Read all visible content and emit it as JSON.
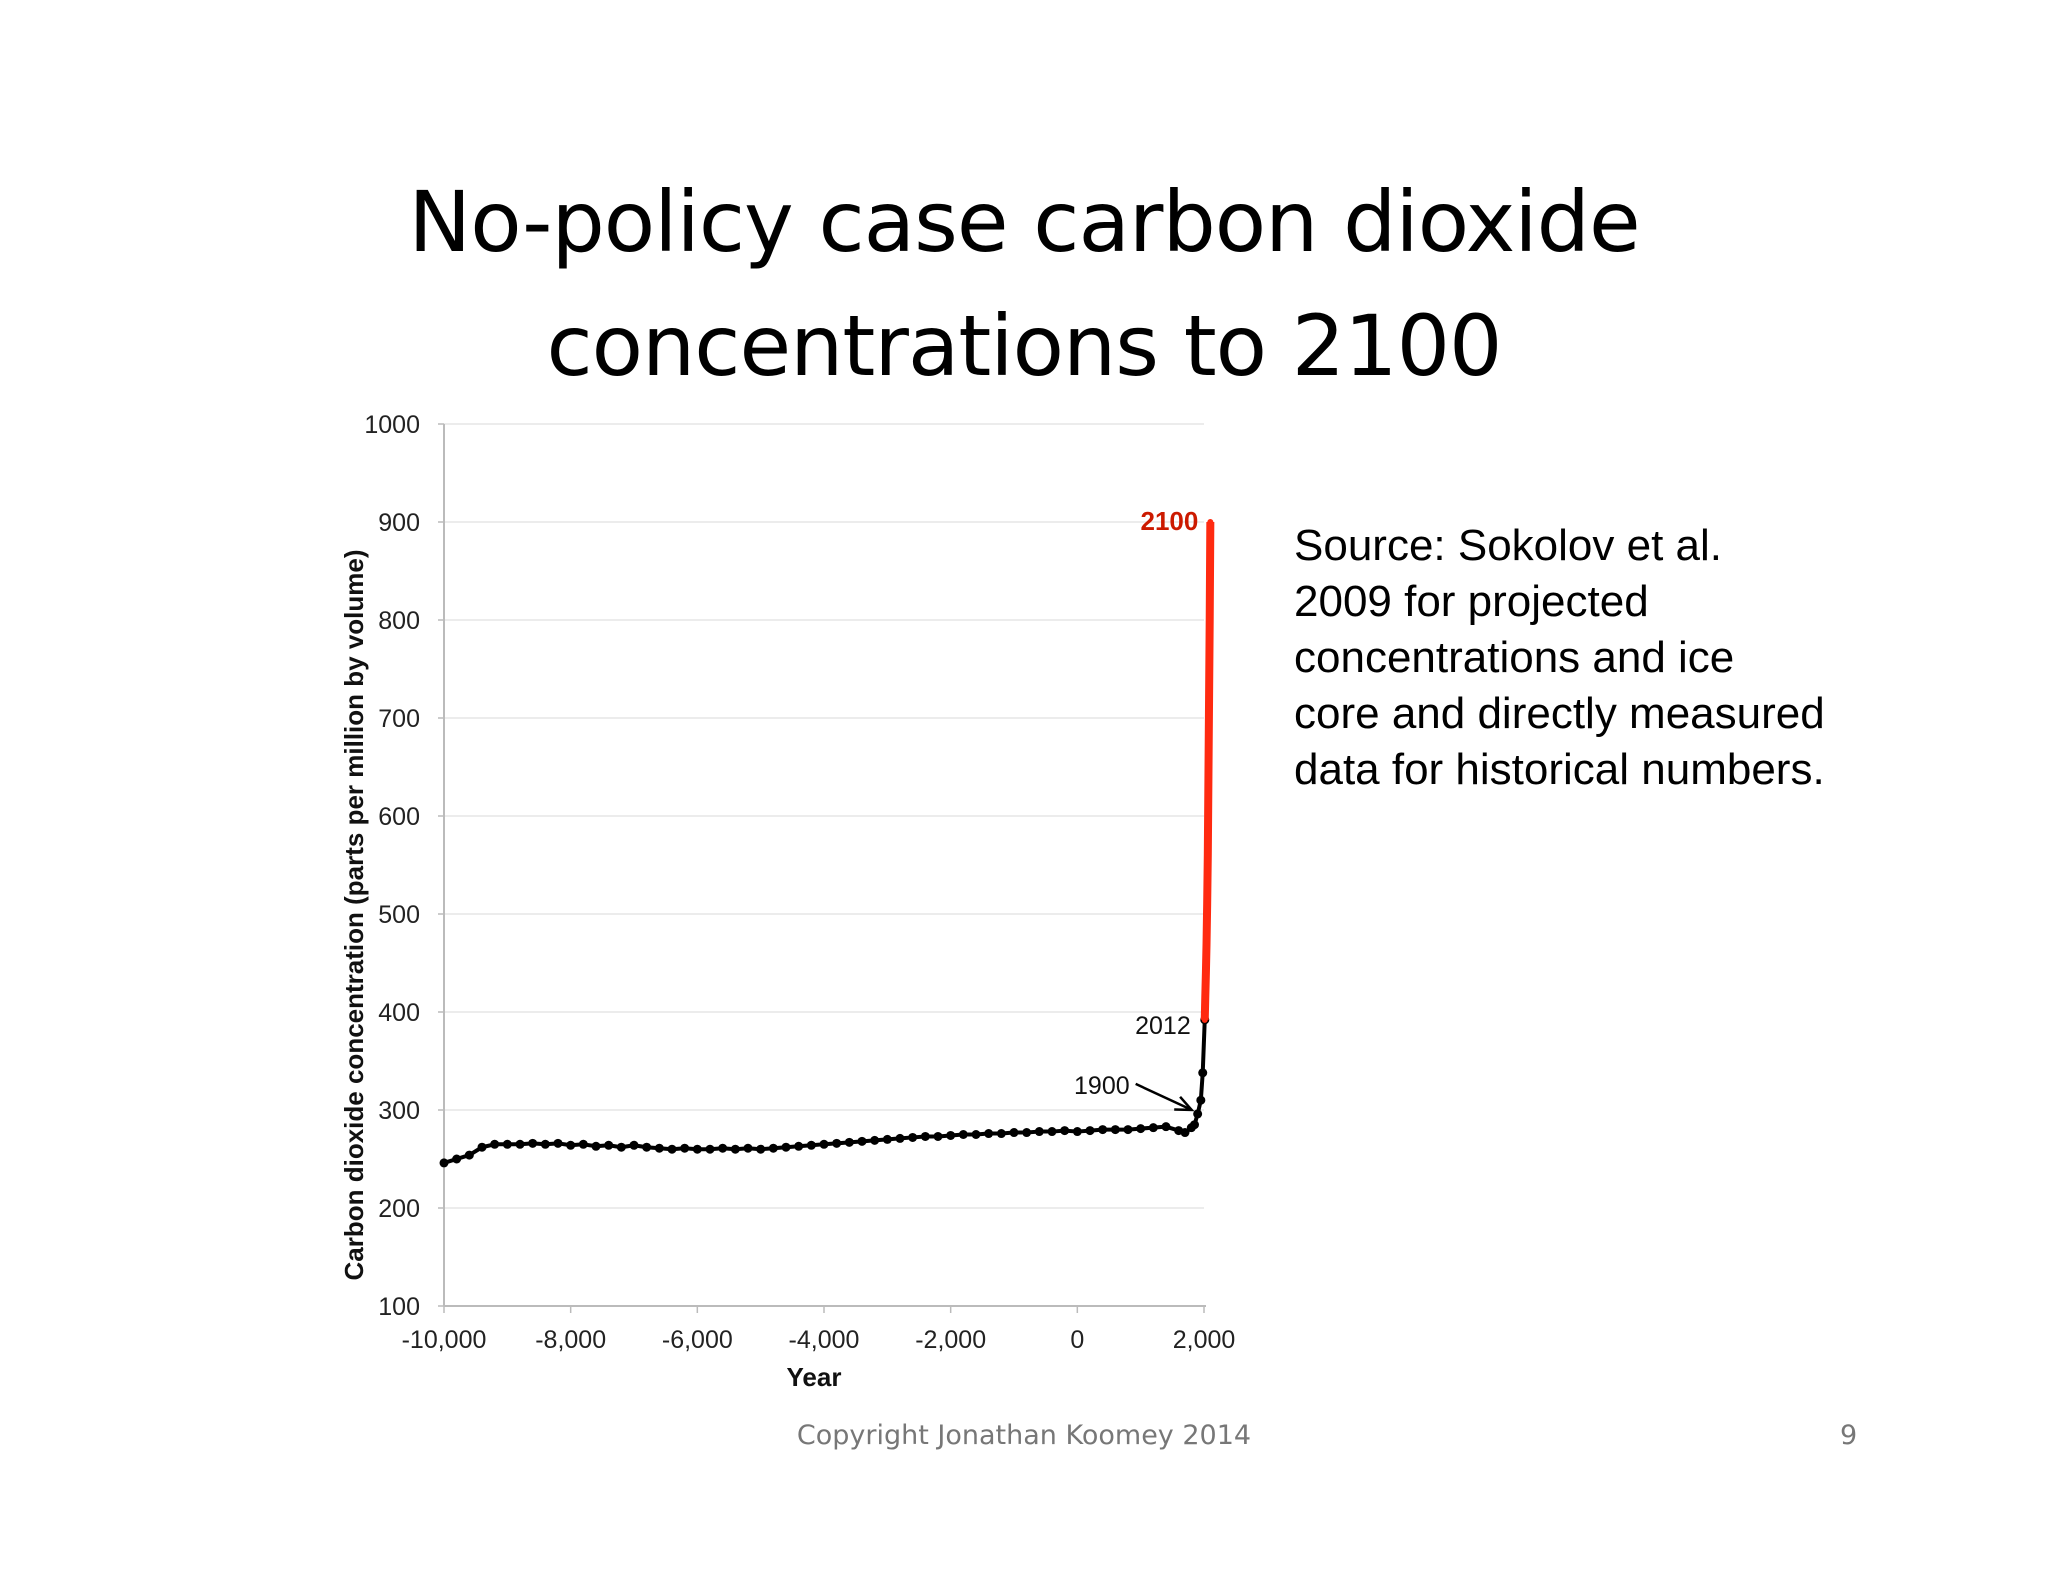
{
  "slide": {
    "title_line1": "No-policy case carbon dioxide",
    "title_line2": "concentrations to 2100",
    "source_note": "Source:  Sokolov et al.\n2009 for projected\nconcentrations and ice\ncore and directly measured\ndata for historical numbers.",
    "copyright": "Copyright Jonathan Koomey 2014",
    "page_number": "9"
  },
  "chart_data": {
    "type": "scatter",
    "xlabel": "Year",
    "ylabel": "Carbon dioxide concentration (parts per million by volume)",
    "xlim": [
      -10000,
      2100
    ],
    "ylim": [
      100,
      1000
    ],
    "xticks": [
      -10000,
      -8000,
      -6000,
      -4000,
      -2000,
      0,
      2000
    ],
    "xtick_labels": [
      "-10,000",
      "-8,000",
      "-6,000",
      "-4,000",
      "-2,000",
      "0",
      "2,000"
    ],
    "yticks": [
      100,
      200,
      300,
      400,
      500,
      600,
      700,
      800,
      900,
      1000
    ],
    "ytick_labels": [
      "100",
      "200",
      "300",
      "400",
      "500",
      "600",
      "700",
      "800",
      "900",
      "1000"
    ],
    "grid": true,
    "colors": {
      "historical": "#000000",
      "projected": "#ff2a10",
      "label_2100": "#cc1a00"
    },
    "series": [
      {
        "x": [
          -10000,
          -9800,
          -9600,
          -9400,
          -9200,
          -9000,
          -8800,
          -8600,
          -8400,
          -8200,
          -8000,
          -7800,
          -7600,
          -7400,
          -7200,
          -7000,
          -6800,
          -6600,
          -6400,
          -6200,
          -6000,
          -5800,
          -5600,
          -5400,
          -5200,
          -5000,
          -4800,
          -4600,
          -4400,
          -4200,
          -4000,
          -3800,
          -3600,
          -3400,
          -3200,
          -3000,
          -2800,
          -2600,
          -2400,
          -2200,
          -2000,
          -1800,
          -1600,
          -1400,
          -1200,
          -1000,
          -800,
          -600,
          -400,
          -200,
          0,
          200,
          400,
          600,
          800,
          1000,
          1200,
          1400,
          1600,
          1700,
          1800,
          1850,
          1900,
          1950,
          1980,
          2012
        ],
        "values": [
          246,
          250,
          254,
          262,
          265,
          265,
          265,
          266,
          265,
          266,
          264,
          265,
          263,
          264,
          262,
          264,
          262,
          261,
          260,
          261,
          260,
          260,
          261,
          260,
          261,
          260,
          261,
          262,
          263,
          264,
          265,
          266,
          267,
          268,
          269,
          270,
          271,
          272,
          273,
          273,
          274,
          275,
          275,
          276,
          276,
          277,
          277,
          278,
          278,
          279,
          278,
          279,
          280,
          280,
          280,
          281,
          282,
          283,
          279,
          277,
          282,
          285,
          296,
          310,
          338,
          392
        ]
      },
      {
        "x": [
          2012,
          2020,
          2030,
          2040,
          2050,
          2060,
          2070,
          2080,
          2090,
          2100
        ],
        "values": [
          392,
          415,
          440,
          470,
          510,
          560,
          640,
          720,
          800,
          900
        ]
      }
    ],
    "annotations": [
      {
        "text": "2100",
        "x": 2100,
        "y": 900
      },
      {
        "text": "2012",
        "x": 2012,
        "y": 392
      },
      {
        "text": "1900",
        "x": 1900,
        "y": 296
      }
    ]
  }
}
